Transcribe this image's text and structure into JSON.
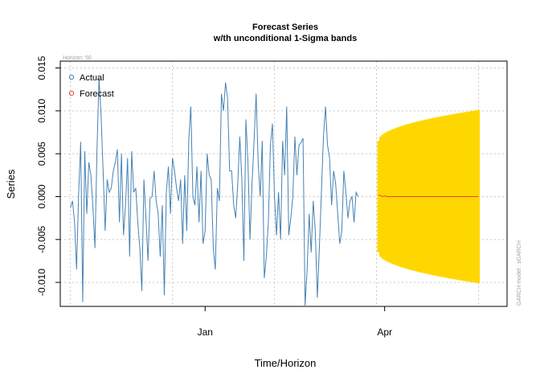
{
  "chart_data": {
    "type": "line",
    "title": "Forecast Series",
    "subtitle": "w/th unconditional 1-Sigma bands",
    "xlabel": "Time/Horizon",
    "ylabel": "Series",
    "horizon_label": "Horizon: 50",
    "side_note": "GARCH model : sGARCH",
    "x_tick_labels": [
      "Jan",
      "Apr"
    ],
    "y_ticks": [
      -0.01,
      -0.005,
      0.0,
      0.005,
      0.01,
      0.015
    ],
    "y_tick_labels": [
      "-0.010",
      "-0.005",
      "0.000",
      "0.005",
      "0.010",
      "0.015"
    ],
    "ylim": [
      -0.0128,
      0.0158
    ],
    "xlim": [
      -5,
      214
    ],
    "x_tick_positions": [
      66,
      154
    ],
    "grid": true,
    "legend_position": "top-left",
    "colors": {
      "actual": "#4682b4",
      "forecast": "#e34a33",
      "band": "#ffd700",
      "grid": "#c8c8c8"
    },
    "series": [
      {
        "name": "Actual",
        "x_start": 0,
        "values": [
          -0.0013,
          -0.0005,
          -0.003,
          -0.0085,
          0.0003,
          0.0064,
          -0.0123,
          0.0053,
          -0.002,
          0.004,
          0.0025,
          -0.0012,
          -0.006,
          0.0055,
          0.0138,
          0.0095,
          0.003,
          -0.004,
          0.002,
          0.0005,
          0.001,
          0.003,
          0.004,
          0.0055,
          -0.003,
          0.005,
          -0.0045,
          -0.001,
          0.0045,
          -0.007,
          0.0053,
          0.0005,
          0.001,
          -0.003,
          -0.006,
          -0.011,
          0.002,
          -0.0025,
          -0.0075,
          -0.0002,
          0.0,
          0.003,
          -0.0005,
          -0.002,
          -0.007,
          -0.001,
          -0.0115,
          0.0005,
          0.0035,
          -0.002,
          0.0045,
          0.003,
          0.001,
          -0.0005,
          0.002,
          -0.0055,
          0.0025,
          -0.004,
          0.0067,
          0.0105,
          0.0,
          -0.001,
          0.0035,
          -0.003,
          0.003,
          -0.0055,
          -0.004,
          0.005,
          0.0025,
          0.002,
          -0.006,
          -0.0085,
          0.001,
          -0.0005,
          0.012,
          0.01,
          0.0133,
          0.0115,
          0.003,
          0.003,
          -0.001,
          -0.0025,
          0.0015,
          0.007,
          0.002,
          -0.0075,
          0.009,
          0.004,
          -0.005,
          0.0015,
          0.0065,
          0.012,
          0.004,
          0.0,
          0.0065,
          -0.0095,
          -0.007,
          -0.003,
          0.006,
          0.0085,
          0.0,
          -0.0045,
          0.0005,
          -0.005,
          0.0065,
          0.0025,
          0.0105,
          -0.0045,
          -0.0025,
          0.0,
          0.007,
          0.0025,
          0.006,
          0.0063,
          0.0068,
          -0.0127,
          -0.0085,
          -0.002,
          -0.0065,
          -0.0005,
          -0.004,
          -0.0118,
          -0.006,
          0.0005,
          0.007,
          0.0105,
          0.006,
          0.0045,
          -0.001,
          0.003,
          0.0015,
          -0.002,
          -0.0055,
          -0.004,
          0.003,
          0.0005,
          -0.0025,
          -0.0005,
          0.0,
          -0.003,
          0.0005,
          0.0
        ]
      },
      {
        "name": "Forecast",
        "x_start": 151,
        "values": [
          0.0002,
          0.0001,
          0.0,
          0.0001,
          0.0,
          0.0,
          0.0,
          0.0,
          0.0,
          0.0,
          0.0,
          0.0,
          0.0,
          0.0,
          0.0,
          0.0,
          0.0,
          0.0,
          0.0,
          0.0,
          0.0,
          0.0,
          0.0,
          0.0,
          0.0,
          0.0,
          0.0,
          0.0,
          0.0,
          0.0,
          0.0,
          0.0,
          0.0,
          0.0,
          0.0,
          0.0,
          0.0,
          0.0,
          0.0,
          0.0,
          0.0,
          0.0,
          0.0,
          0.0,
          0.0,
          0.0,
          0.0,
          0.0,
          0.0,
          0.0
        ]
      }
    ],
    "band": {
      "x_start": 151,
      "count": 50,
      "sigma_start": 0.0065,
      "sigma_end": 0.0101
    }
  }
}
